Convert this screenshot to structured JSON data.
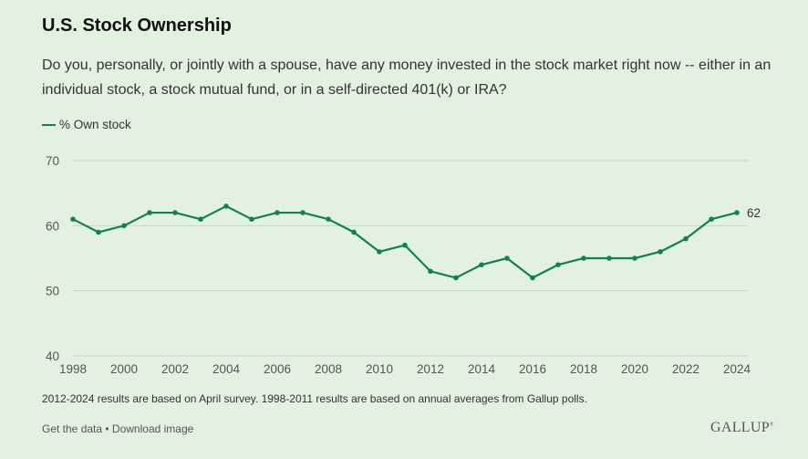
{
  "header": {
    "title": "U.S. Stock Ownership",
    "question": "Do you, personally, or jointly with a spouse, have any money invested in the stock market right now -- either in an individual stock, a stock mutual fund, or in a self-directed 401(k) or IRA?"
  },
  "chart_data": {
    "type": "line",
    "title": "U.S. Stock Ownership",
    "xlabel": "",
    "ylabel": "",
    "x": [
      1998,
      1999,
      2000,
      2001,
      2002,
      2003,
      2004,
      2005,
      2006,
      2007,
      2008,
      2009,
      2010,
      2011,
      2012,
      2013,
      2014,
      2015,
      2016,
      2017,
      2018,
      2019,
      2020,
      2021,
      2022,
      2023,
      2024
    ],
    "series": [
      {
        "name": "% Own stock",
        "color": "#13824a",
        "values": [
          61,
          59,
          60,
          62,
          62,
          61,
          63,
          61,
          62,
          62,
          61,
          59,
          56,
          57,
          53,
          52,
          54,
          55,
          52,
          54,
          55,
          55,
          55,
          56,
          58,
          61,
          62
        ]
      }
    ],
    "xticks": [
      "1998",
      "2000",
      "2002",
      "2004",
      "2006",
      "2008",
      "2010",
      "2012",
      "2014",
      "2016",
      "2018",
      "2020",
      "2022",
      "2024"
    ],
    "yticks": [
      "40",
      "50",
      "60",
      "70"
    ],
    "ylim": [
      40,
      70
    ],
    "xlim": [
      1998,
      2024
    ],
    "grid": true,
    "legend": "top-left",
    "end_label": "62"
  },
  "footer": {
    "note": "2012-2024 results are based on April survey. 1998-2011 results are based on annual averages from Gallup polls.",
    "get_data": "Get the data",
    "separator": " • ",
    "download": "Download image",
    "logo": "GALLUP",
    "logo_mark": "®"
  }
}
